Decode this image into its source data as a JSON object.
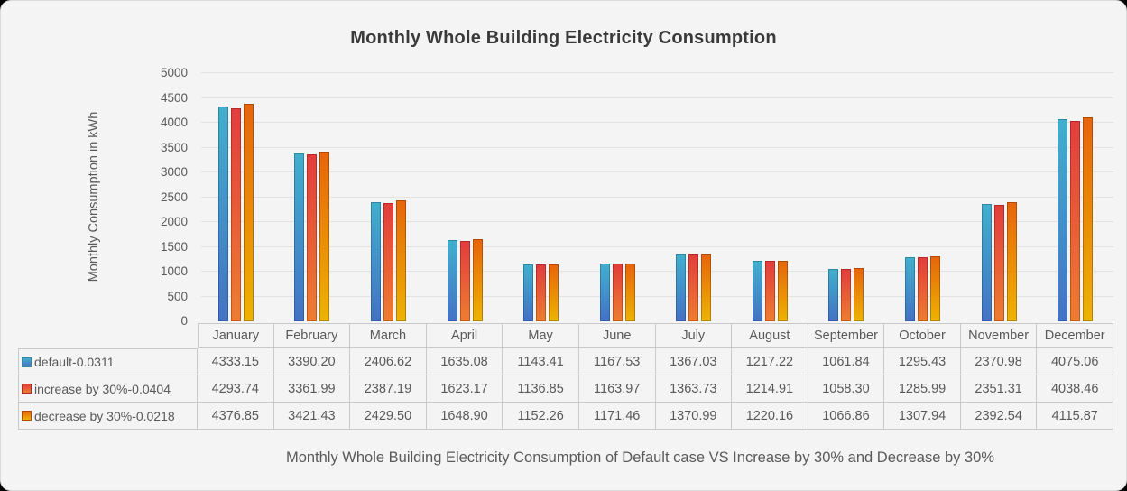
{
  "title": "Monthly Whole Building Electricity Consumption",
  "caption": "Monthly Whole Building Electricity Consumption of Default case VS Increase by 30% and Decrease by 30%",
  "chart_data": {
    "type": "bar",
    "title": "Monthly Whole Building Electricity Consumption",
    "xlabel": "",
    "ylabel": "Monthly Consumption in kWh",
    "ylim": [
      0,
      5000
    ],
    "ytick_step": 500,
    "grid": true,
    "legend_position": "left-of-data-table",
    "has_data_table": true,
    "categories": [
      "January",
      "February",
      "March",
      "April",
      "May",
      "June",
      "July",
      "August",
      "September",
      "October",
      "November",
      "December"
    ],
    "series": [
      {
        "key": "default",
        "name": "default-0.0311",
        "values": [
          4333.15,
          3390.2,
          2406.62,
          1635.08,
          1143.41,
          1167.53,
          1367.03,
          1217.22,
          1061.84,
          1295.43,
          2370.98,
          4075.06
        ],
        "fill_top": "#41AFCD",
        "fill_bottom": "#4472C4",
        "border_top": "#2E86A0",
        "border_bottom": "#2E5BA6"
      },
      {
        "key": "increase-30",
        "name": "increase by 30%-0.0404",
        "values": [
          4293.74,
          3361.99,
          2387.19,
          1623.17,
          1136.85,
          1163.97,
          1363.73,
          1214.91,
          1058.3,
          1285.99,
          2351.31,
          4038.46
        ],
        "fill_top": "#E23D3D",
        "fill_bottom": "#ED7D31",
        "border_top": "#B52828",
        "border_bottom": "#C05A14"
      },
      {
        "key": "decrease-30",
        "name": "decrease by 30%-0.0218",
        "values": [
          4376.85,
          3421.43,
          2429.5,
          1648.9,
          1152.26,
          1171.46,
          1370.99,
          1220.16,
          1066.86,
          1307.94,
          2392.54,
          4115.87
        ],
        "fill_top": "#E7650B",
        "fill_bottom": "#EDB302",
        "border_top": "#AE4A06",
        "border_bottom": "#B08402"
      }
    ]
  },
  "colors": {
    "background": "#F4F4F4",
    "gridline": "#E3E3E3",
    "axis_text": "#595959",
    "title_text": "#3A3A3A",
    "table_border": "#C9C9C9",
    "caption_text": "#5A5A5A"
  }
}
